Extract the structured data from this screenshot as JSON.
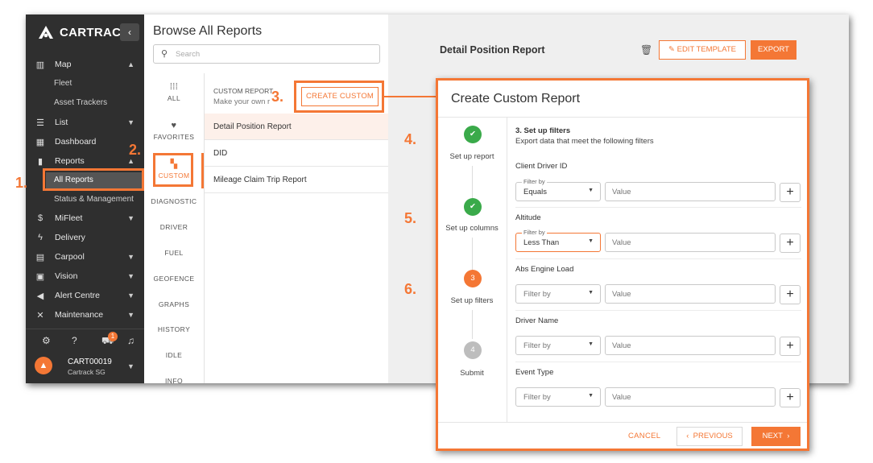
{
  "brand": {
    "name": "CARTRACK",
    "accent": "#f47735",
    "sidebar_bg": "#2f2f2f"
  },
  "sidebar": {
    "collapse_icon": "chevron-left-icon",
    "items": [
      {
        "label": "Map",
        "icon": "map-icon",
        "expanded": true
      },
      {
        "label": "Fleet"
      },
      {
        "label": "Asset Trackers"
      },
      {
        "label": "List",
        "icon": "list-icon"
      },
      {
        "label": "Dashboard",
        "icon": "dashboard-icon"
      },
      {
        "label": "Reports",
        "icon": "bar-chart-icon",
        "expanded": true
      },
      {
        "label": "All Reports",
        "active": true
      },
      {
        "label": "Status & Management"
      },
      {
        "label": "MiFleet",
        "icon": "dollar-icon"
      },
      {
        "label": "Delivery",
        "icon": "bolt-icon"
      },
      {
        "label": "Carpool",
        "icon": "calendar-icon"
      },
      {
        "label": "Vision",
        "icon": "camera-icon"
      },
      {
        "label": "Alert Centre",
        "icon": "megaphone-icon"
      },
      {
        "label": "Maintenance",
        "icon": "tools-icon"
      }
    ],
    "notification_count": "1",
    "user": {
      "id": "CART00019",
      "org": "Cartrack SG"
    }
  },
  "browse": {
    "title": "Browse All Reports",
    "search_placeholder": "Search",
    "categories": [
      "ALL",
      "FAVORITES",
      "CUSTOM",
      "DIAGNOSTIC",
      "DRIVER",
      "FUEL",
      "GEOFENCE",
      "GRAPHS",
      "HISTORY",
      "IDLE",
      "INFO"
    ],
    "selected_category": "CUSTOM",
    "list_header": "CUSTOM REPORT",
    "list_subheader": "Make your own r",
    "create_custom_label": "CREATE CUSTOM",
    "reports": [
      "Detail Position Report",
      "DID",
      "Mileage Claim Trip Report"
    ]
  },
  "detail": {
    "title": "Detail Position Report",
    "edit_template_label": "EDIT TEMPLATE",
    "export_label": "EXPORT"
  },
  "annotations": [
    "1.",
    "2.",
    "3.",
    "4.",
    "5.",
    "6."
  ],
  "modal": {
    "title": "Create Custom Report",
    "steps": [
      {
        "label": "Set up report",
        "status": "done"
      },
      {
        "label": "Set up columns",
        "status": "done"
      },
      {
        "label": "Set up filters",
        "status": "active",
        "number": "3"
      },
      {
        "label": "Submit",
        "status": "pending",
        "number": "4"
      }
    ],
    "section_heading": "3. Set up filters",
    "section_sub": "Export data that meet the following filters",
    "filters": [
      {
        "label": "Client Driver ID",
        "filter_by_label": "Filter by",
        "operator": "Equals",
        "value_placeholder": "Value"
      },
      {
        "label": "Altitude",
        "filter_by_label": "Filter by",
        "operator": "Less Than",
        "value_placeholder": "Value"
      },
      {
        "label": "Abs Engine Load",
        "operator_placeholder": "Filter by",
        "value_placeholder": "Value"
      },
      {
        "label": "Driver Name",
        "operator_placeholder": "Filter by",
        "value_placeholder": "Value"
      },
      {
        "label": "Event Type",
        "operator_placeholder": "Filter by",
        "value_placeholder": "Value"
      }
    ],
    "cancel_label": "CANCEL",
    "previous_label": "PREVIOUS",
    "next_label": "NEXT"
  }
}
